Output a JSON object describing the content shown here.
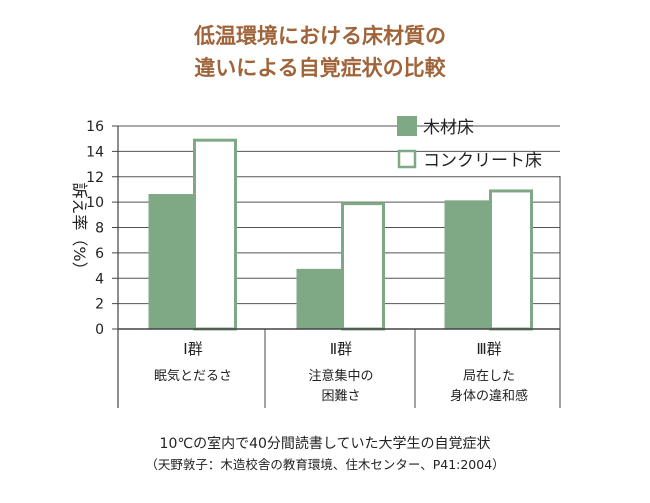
{
  "chart_data": {
    "type": "bar",
    "title_lines": [
      "低温環境における床材質の",
      "違いによる自覚症状の比較"
    ],
    "ylabel": "訴え率（%）",
    "ylim": [
      0,
      16
    ],
    "yticks": [
      0,
      2,
      4,
      6,
      8,
      10,
      12,
      14,
      16
    ],
    "grid": true,
    "legend_position": "top-right",
    "categories": [
      {
        "label": "Ⅰ群",
        "desc_lines": [
          "眠気とだるさ"
        ]
      },
      {
        "label": "Ⅱ群",
        "desc_lines": [
          "注意集中の",
          "困難さ"
        ]
      },
      {
        "label": "Ⅲ群",
        "desc_lines": [
          "局在した",
          "身体の違和感"
        ]
      }
    ],
    "series": [
      {
        "name": "木材床",
        "values": [
          10.6,
          4.7,
          10.1
        ],
        "fill": "#7fa884",
        "stroke": "#7fa884"
      },
      {
        "name": "コンクリート床",
        "values": [
          15.0,
          10.0,
          11.0
        ],
        "fill": "#ffffff",
        "stroke": "#7fa884"
      }
    ],
    "caption_lines": [
      "10℃の室内で40分間読書していた大学生の自覚症状",
      "（天野敦子：木造校舎の教育環境、住木センター、P41:2004）"
    ]
  },
  "colors": {
    "title": "#a0643a",
    "axis": "#444444",
    "grid": "#555555",
    "text": "#222222"
  }
}
